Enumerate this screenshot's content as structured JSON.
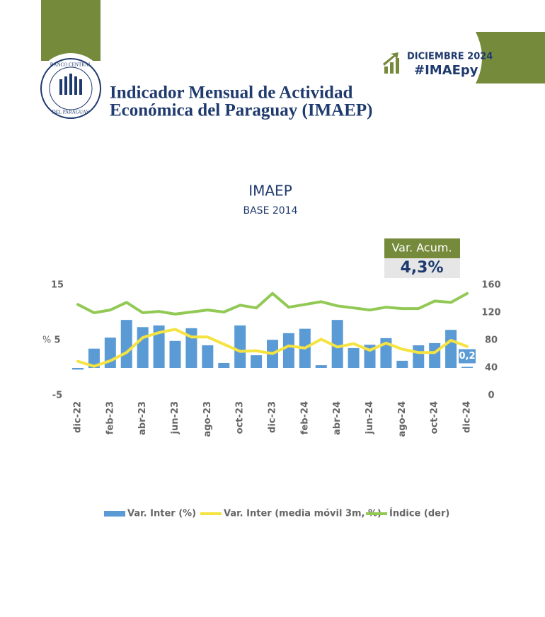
{
  "header": {
    "title_lines": [
      "Indicador Mensual de Actividad",
      "Económica del Paraguay (IMAEP)"
    ],
    "period": "DICIEMBRE 2024",
    "hashtag": "#IMAEpy",
    "logo_top": "BANCO CENTRAL",
    "logo_bottom": "DEL PARAGUAY"
  },
  "highlight": {
    "label": "Var. Acum.",
    "value": "4,3%"
  },
  "chart_data": {
    "type": "bar",
    "title": "IMAEP",
    "subtitle": "BASE 2014",
    "ylabel": "%",
    "categories": [
      "dic-22",
      null,
      "feb-23",
      null,
      "abr-23",
      null,
      "jun-23",
      null,
      "ago-23",
      null,
      "oct-23",
      null,
      "dic-23",
      null,
      "feb-24",
      null,
      "abr-24",
      null,
      "jun-24",
      null,
      "ago-24",
      null,
      "oct-24",
      null,
      "dic-24"
    ],
    "series": [
      {
        "name": "Var. Inter (%)",
        "type": "bar",
        "color": "#5b9bd5",
        "values": [
          -0.3,
          3.5,
          5.5,
          8.7,
          7.4,
          7.7,
          4.9,
          7.2,
          4.1,
          0.9,
          7.7,
          2.3,
          5.1,
          6.3,
          7.1,
          0.5,
          8.7,
          3.6,
          4.2,
          5.4,
          1.3,
          4.1,
          4.5,
          6.9,
          0.2
        ],
        "value_labels": [
          null,
          null,
          null,
          null,
          null,
          null,
          null,
          null,
          null,
          null,
          null,
          null,
          null,
          null,
          null,
          null,
          null,
          null,
          null,
          null,
          null,
          null,
          null,
          null,
          "0,2"
        ]
      },
      {
        "name": "Var. Inter (media móvil 3m, %)",
        "type": "line",
        "color": "#f5e342",
        "values": [
          1.2,
          0.3,
          1.3,
          2.8,
          5.5,
          6.4,
          7.0,
          5.6,
          5.6,
          4.3,
          3.0,
          3.1,
          2.6,
          4.0,
          3.6,
          5.2,
          3.8,
          4.4,
          3.2,
          4.5,
          3.4,
          2.8,
          2.8,
          5.0,
          3.9
        ]
      },
      {
        "name": "Índice (der)",
        "type": "line",
        "axis": "y2",
        "color": "#92c955",
        "values": [
          132,
          120,
          124,
          135,
          120,
          122,
          118,
          121,
          124,
          121,
          131,
          127,
          148,
          128,
          132,
          136,
          130,
          127,
          124,
          128,
          126,
          126,
          137,
          135,
          148
        ]
      }
    ],
    "ylim": [
      -5,
      15
    ],
    "yticks": [
      -5,
      5,
      15
    ],
    "y2lim": [
      0,
      160
    ],
    "y2ticks": [
      0,
      40,
      80,
      120,
      160
    ],
    "grid": false,
    "legend": "bottom"
  }
}
